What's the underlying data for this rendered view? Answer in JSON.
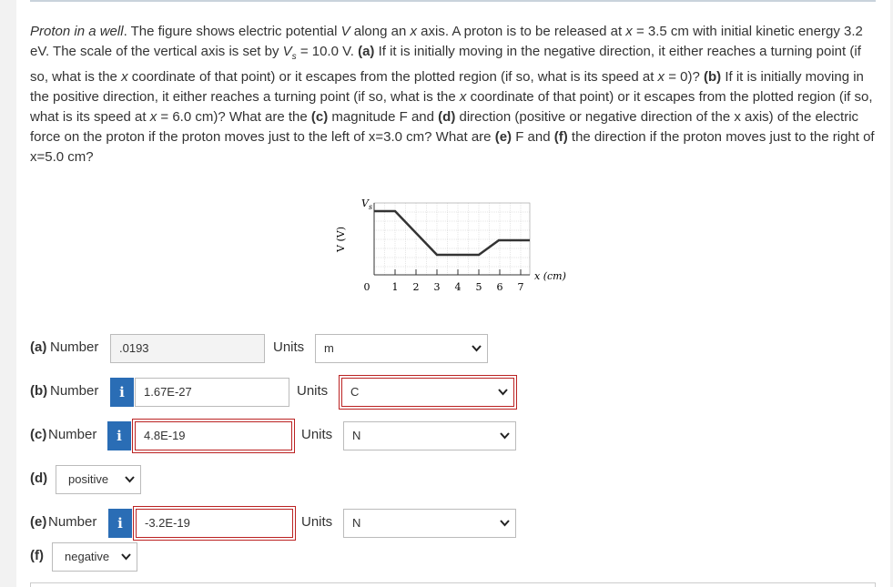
{
  "problem": {
    "runs": [
      "Proton in a well",
      ". The figure shows electric potential ",
      "V",
      " along an ",
      "x",
      " axis. A proton is to be released at ",
      "x",
      " = 3.5 cm with initial kinetic energy 3.2 eV. The scale of the vertical axis is set by ",
      "V",
      "s",
      " = 10.0 V. ",
      "(a)",
      " If it is initially moving in the negative direction, it either reaches a turning point (if so, what is the ",
      "x",
      " coordinate of that point) or it escapes from the plotted region (if so, what is its speed at ",
      "x",
      " = 0)? ",
      "(b)",
      " If it is initially moving in the positive direction, it either reaches a turning point (if so, what is the ",
      "x",
      " coordinate of that point) or it escapes from the plotted region (if so, what is its speed at ",
      "x",
      " = 6.0 cm)? What are the ",
      "(c)",
      " magnitude F and ",
      "(d)",
      " direction (positive or negative direction of the x axis) of the electric force on the proton if the proton moves just to the left of x=3.0 cm? What are ",
      "(e)",
      " F and ",
      "(f)",
      " the direction if the proton moves just to the right of x=5.0 cm?"
    ]
  },
  "figure": {
    "y_label": "V (V)",
    "scale_label": "V",
    "scale_sub": "s",
    "x_label": "x (cm)",
    "x_ticks": [
      "0",
      "1",
      "2",
      "3",
      "4",
      "5",
      "6",
      "7"
    ]
  },
  "answers": [
    {
      "part": "(a)",
      "kind": "Number",
      "value": ".0193",
      "units_label": "Units",
      "units": "m"
    },
    {
      "part": "(b)",
      "kind": "Number",
      "icon": "i",
      "value": "1.67E-27",
      "units_label": "Units",
      "units": "C"
    },
    {
      "part": "(c)",
      "kind": "Number",
      "icon": "i",
      "value": "4.8E-19",
      "units_label": "Units",
      "units": "N"
    },
    {
      "part": "(d)",
      "choice": "positive"
    },
    {
      "part": "(e)",
      "kind": "Number",
      "icon": "i",
      "value": "-3.2E-19",
      "units_label": "Units",
      "units": "N"
    },
    {
      "part": "(f)",
      "choice": "negative"
    }
  ]
}
